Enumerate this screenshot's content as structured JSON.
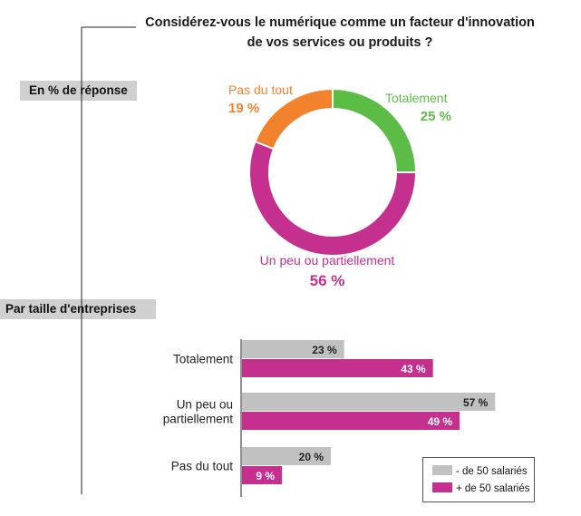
{
  "title_line1": "Considérez-vous le numérique comme un facteur d'innovation",
  "title_line2": "de vos services ou produits ?",
  "sections": {
    "pct": "En % de réponse",
    "size": "Par taille d'entreprises"
  },
  "colors": {
    "totalement": "#5bbd45",
    "un_peu": "#c5308e",
    "pas_du_tout": "#f3822c",
    "small": "#c1c1c1",
    "large": "#c5308e"
  },
  "chart_data": [
    {
      "type": "pie",
      "title": "",
      "slices": [
        {
          "label": "Totalement",
          "value": 25,
          "value_label": "25 %",
          "color": "#5bbd45"
        },
        {
          "label": "Un peu ou partiellement",
          "value": 56,
          "value_label": "56 %",
          "color": "#c5308e"
        },
        {
          "label": "Pas du tout",
          "value": 19,
          "value_label": "19 %",
          "color": "#f3822c"
        }
      ]
    },
    {
      "type": "bar",
      "orientation": "horizontal",
      "categories": [
        {
          "lines": [
            "Totalement"
          ]
        },
        {
          "lines": [
            "Un peu ou",
            "partiellement"
          ]
        },
        {
          "lines": [
            "Pas du tout"
          ]
        }
      ],
      "series": [
        {
          "name": "- de 50 salariés",
          "values": [
            23,
            57,
            20
          ],
          "labels": [
            "23 %",
            "57 %",
            "20 %"
          ],
          "color": "#c1c1c1"
        },
        {
          "name": "+ de 50 salariés",
          "values": [
            43,
            49,
            9
          ],
          "labels": [
            "43 %",
            "49 %",
            "9 %"
          ],
          "color": "#c5308e"
        }
      ],
      "xlim": [
        0,
        100
      ],
      "grid": false,
      "legend_position": "bottom-right"
    }
  ]
}
